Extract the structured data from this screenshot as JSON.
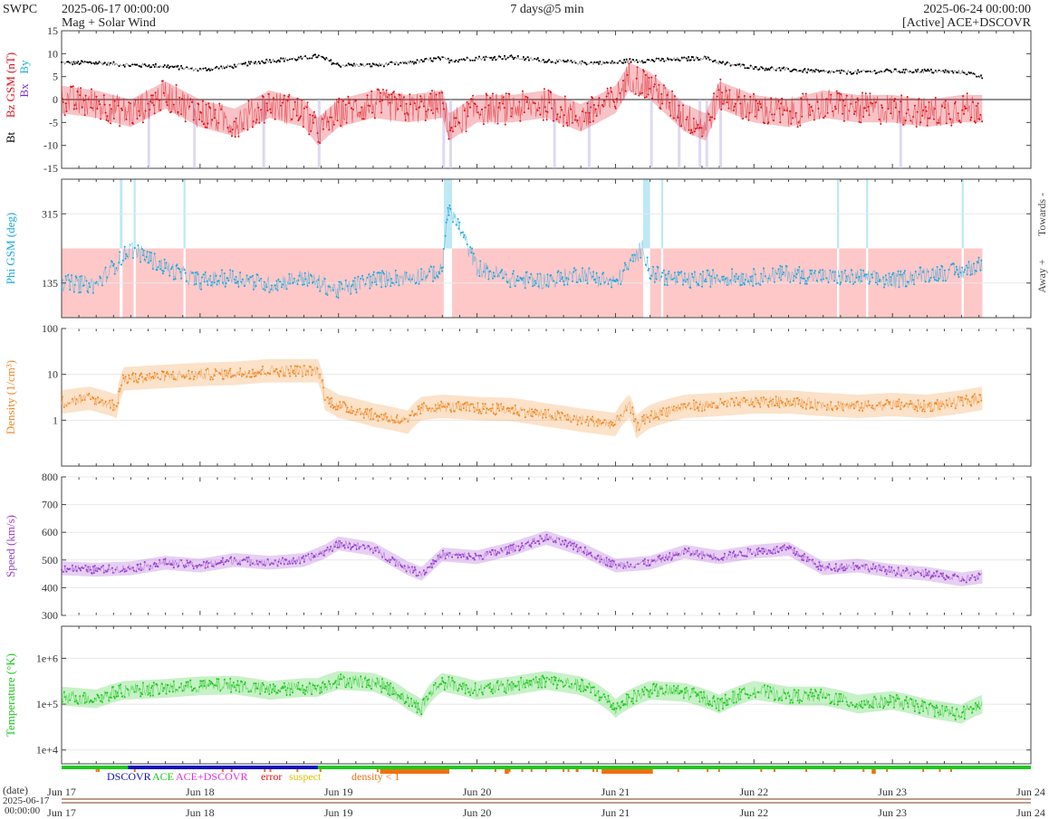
{
  "header": {
    "org": "SWPC",
    "start_time": "2025-06-17 00:00:00",
    "subtitle": "Mag + Solar Wind",
    "interval": "7 days@5 min",
    "end_time": "2025-06-24 00:00:00",
    "source": "[Active] ACE+DSCOVR"
  },
  "colors": {
    "bt": "#000000",
    "bz": "#e0101a",
    "by": "#1ab0d8",
    "bx": "#7a2ad0",
    "phi": "#1aa8e0",
    "phi_away_band": "#ffc8c8",
    "phi_toward_band": "#bfe8f5",
    "density": "#f08a28",
    "speed": "#9a40d0",
    "temperature": "#1ec81e",
    "dscovr": "#1010c0",
    "ace": "#1ec81e",
    "ace_dscovr": "#e030e0",
    "error": "#e01010",
    "suspect": "#e0c000",
    "density_lt1": "#f07010"
  },
  "chart_data": [
    {
      "type": "line",
      "name": "mag",
      "ylabel_parts": [
        "Bt",
        "Bz GSM (nT)",
        "Bx",
        "By"
      ],
      "ylim": [
        -15,
        15
      ],
      "yticks": [
        "15",
        "10",
        "5",
        "0",
        "-5",
        "-10",
        "-15"
      ],
      "x_days": [
        0,
        0.25,
        0.5,
        0.75,
        1,
        1.25,
        1.5,
        1.75,
        1.85,
        2,
        2.25,
        2.5,
        2.75,
        2.8,
        3,
        3.25,
        3.5,
        3.75,
        4,
        4.1,
        4.25,
        4.5,
        4.65,
        4.75,
        5,
        5.25,
        5.5,
        5.75,
        6,
        6.25,
        6.5,
        6.65
      ],
      "series": [
        {
          "name": "Bt",
          "values": [
            8,
            8,
            7.5,
            7.3,
            6.5,
            7.3,
            8.5,
            9,
            9.5,
            7.5,
            7.5,
            8,
            9,
            8.5,
            9,
            9.2,
            8.5,
            8,
            8,
            8.5,
            8.5,
            8.8,
            9.2,
            8,
            7,
            6.5,
            6,
            6,
            6.2,
            6.2,
            6,
            5
          ]
        },
        {
          "name": "Bz",
          "values": [
            0,
            -1,
            -3,
            1,
            -3,
            -5,
            -1,
            -3,
            -7,
            -3,
            -1,
            -2,
            -1,
            -6,
            -2,
            -2,
            -1,
            -4,
            0,
            5,
            3,
            -4,
            -6,
            1,
            -2,
            -3,
            -1,
            -2,
            -2,
            -3,
            -2,
            -2
          ]
        }
      ]
    },
    {
      "type": "scatter",
      "name": "phi",
      "ylabel": "Phi GSM (deg)",
      "ylim": [
        45,
        405
      ],
      "yticks": [
        "315",
        "135"
      ],
      "side_labels": [
        "Towards -",
        "Away +"
      ],
      "x_days": [
        0,
        0.25,
        0.5,
        0.75,
        1,
        1.25,
        1.5,
        1.75,
        2,
        2.25,
        2.5,
        2.75,
        2.78,
        2.82,
        3,
        3.25,
        3.5,
        3.75,
        4,
        4.2,
        4.25,
        4.5,
        4.75,
        5,
        5.25,
        5.5,
        5.75,
        6,
        6.25,
        6.5,
        6.65
      ],
      "values": [
        135,
        130,
        225,
        175,
        140,
        150,
        130,
        150,
        115,
        145,
        150,
        165,
        310,
        320,
        175,
        145,
        140,
        160,
        135,
        230,
        160,
        140,
        150,
        150,
        160,
        150,
        150,
        140,
        160,
        165,
        185
      ]
    },
    {
      "type": "line",
      "name": "density",
      "ylabel": "Density (1/cm³)",
      "ylim": [
        0.1,
        100
      ],
      "scale": "log",
      "yticks": [
        "100",
        "10",
        "1"
      ],
      "x_days": [
        0,
        0.2,
        0.4,
        0.45,
        0.75,
        1,
        1.25,
        1.5,
        1.7,
        1.85,
        1.9,
        2,
        2.25,
        2.5,
        2.6,
        2.75,
        3,
        3.25,
        3.5,
        3.75,
        4,
        4.1,
        4.15,
        4.25,
        4.5,
        4.75,
        5,
        5.25,
        5.5,
        5.75,
        6,
        6.25,
        6.5,
        6.65
      ],
      "values": [
        2.5,
        3,
        2,
        8,
        9,
        10,
        10.5,
        12,
        12,
        12,
        3,
        2,
        1.3,
        0.9,
        1.8,
        2,
        1.8,
        1.7,
        1.3,
        1,
        0.8,
        2,
        0.7,
        1.2,
        2,
        2.2,
        2.5,
        2.5,
        2.2,
        2,
        2.2,
        2,
        2.5,
        3
      ]
    },
    {
      "type": "line",
      "name": "speed",
      "ylabel": "Speed (km/s)",
      "ylim": [
        300,
        800
      ],
      "yticks": [
        "800",
        "700",
        "600",
        "500",
        "400",
        "300"
      ],
      "x_days": [
        0,
        0.25,
        0.5,
        0.75,
        1,
        1.25,
        1.5,
        1.75,
        1.9,
        2,
        2.25,
        2.5,
        2.6,
        2.75,
        3,
        3.25,
        3.5,
        3.75,
        4,
        4.25,
        4.5,
        4.75,
        5,
        5.25,
        5.5,
        5.75,
        6,
        6.25,
        6.5,
        6.65
      ],
      "values": [
        470,
        465,
        470,
        490,
        480,
        500,
        490,
        500,
        530,
        560,
        540,
        470,
        450,
        520,
        510,
        540,
        580,
        540,
        480,
        490,
        530,
        510,
        530,
        540,
        470,
        480,
        460,
        450,
        430,
        440
      ]
    },
    {
      "type": "line",
      "name": "temperature",
      "ylabel": "Temperature (°K)",
      "ylim": [
        5000,
        5000000
      ],
      "scale": "log",
      "yticks": [
        "1e+6",
        "1e+5",
        "1e+4"
      ],
      "x_days": [
        0,
        0.25,
        0.45,
        0.75,
        1,
        1.25,
        1.5,
        1.75,
        1.85,
        2,
        2.25,
        2.5,
        2.6,
        2.75,
        3,
        3.25,
        3.5,
        3.75,
        4,
        4.25,
        4.5,
        4.75,
        5,
        5.25,
        5.5,
        5.75,
        6,
        6.25,
        6.5,
        6.65
      ],
      "values": [
        150000,
        130000,
        200000,
        220000,
        250000,
        260000,
        200000,
        230000,
        230000,
        330000,
        300000,
        120000,
        80000,
        300000,
        200000,
        250000,
        330000,
        250000,
        80000,
        200000,
        180000,
        100000,
        200000,
        150000,
        150000,
        100000,
        120000,
        80000,
        60000,
        100000
      ]
    }
  ],
  "legend": {
    "dscovr": "DSCOVR",
    "ace": "ACE",
    "ace_dscovr": "ACE+DSCOVR",
    "error": "error",
    "suspect": "suspect",
    "density_lt1": "density < 1"
  },
  "x_axis": {
    "ticks": [
      "Jun 17",
      "Jun 18",
      "Jun 19",
      "Jun 20",
      "Jun 21",
      "Jun 22",
      "Jun 23",
      "Jun 24"
    ]
  },
  "date_axis": {
    "label": "(date)",
    "start_date": "2025-06-17",
    "start_clock": "00:00:00",
    "ticks": [
      "Jun 17",
      "Jun 18",
      "Jun 19",
      "Jun 20",
      "Jun 21",
      "Jun 22",
      "Jun 23",
      "Jun 24"
    ]
  }
}
